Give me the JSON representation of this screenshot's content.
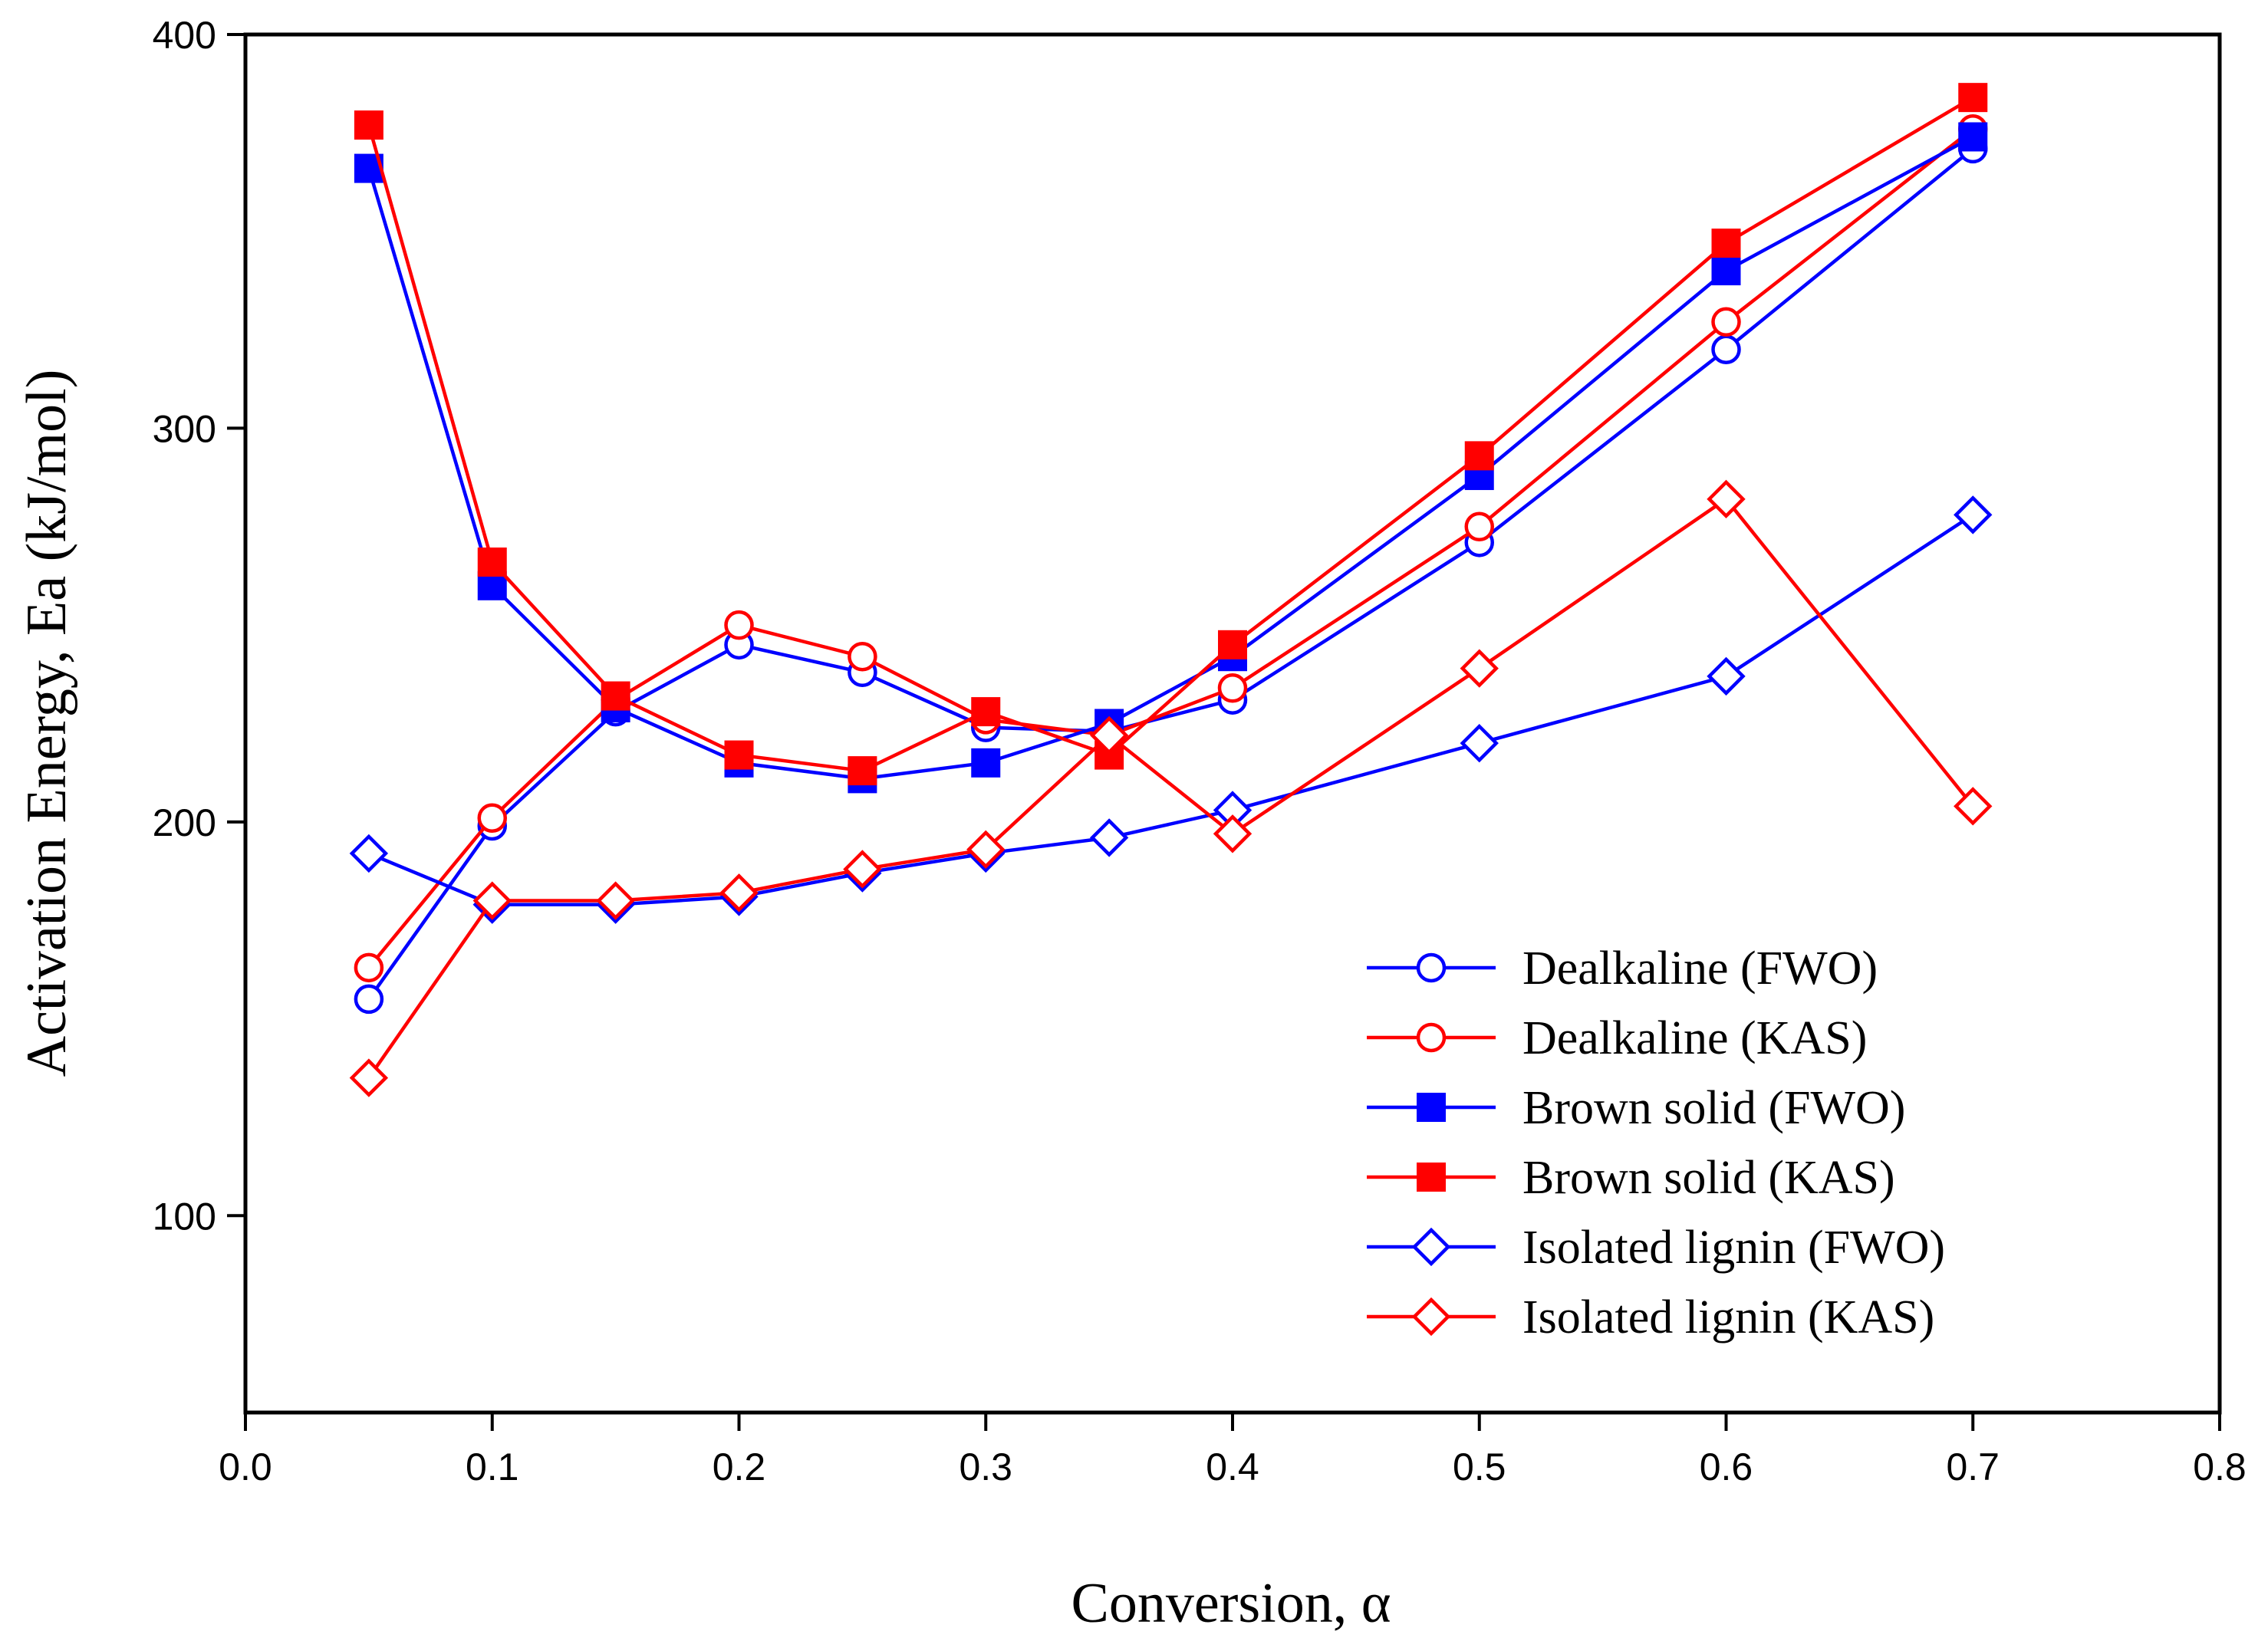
{
  "chart_data": {
    "type": "line",
    "title": "",
    "xlabel": "Conversion, α",
    "ylabel": "Activation Energy, Ea (kJ/mol)",
    "xlim": [
      0.0,
      0.8
    ],
    "ylim": [
      50,
      400
    ],
    "xticks": [
      0.0,
      0.1,
      0.2,
      0.3,
      0.4,
      0.5,
      0.6,
      0.7,
      0.8
    ],
    "yticks": [
      100,
      200,
      300,
      400
    ],
    "xtick_labels": [
      "0.0",
      "0.1",
      "0.2",
      "0.3",
      "0.4",
      "0.5",
      "0.6",
      "0.7",
      "0.8"
    ],
    "ytick_labels": [
      "100",
      "200",
      "300",
      "400"
    ],
    "grid": false,
    "legend_position": "bottom-right",
    "x": [
      0.05,
      0.1,
      0.15,
      0.2,
      0.25,
      0.3,
      0.35,
      0.4,
      0.5,
      0.6,
      0.7
    ],
    "series": [
      {
        "name": "Dealkaline (FWO)",
        "color": "#0000ff",
        "marker": "circle-open",
        "values": [
          155,
          199,
          228,
          245,
          238,
          224,
          223,
          231,
          271,
          320,
          371
        ]
      },
      {
        "name": "Dealkaline (KAS)",
        "color": "#ff0000",
        "marker": "circle-open",
        "values": [
          163,
          201,
          231,
          250,
          242,
          226,
          222,
          234,
          275,
          327,
          376
        ]
      },
      {
        "name": "Brown solid (FWO)",
        "color": "#0000ff",
        "marker": "square-filled",
        "values": [
          366,
          260,
          229,
          215,
          211,
          215,
          225,
          242,
          288,
          340,
          374
        ]
      },
      {
        "name": "Brown solid (KAS)",
        "color": "#ff0000",
        "marker": "square-filled",
        "values": [
          377,
          266,
          232,
          217,
          213,
          228,
          217,
          245,
          293,
          347,
          384
        ]
      },
      {
        "name": "Isolated lignin (FWO)",
        "color": "#0000ff",
        "marker": "diamond-open",
        "values": [
          192,
          179,
          179,
          181,
          187,
          192,
          196,
          203,
          220,
          237,
          278
        ]
      },
      {
        "name": "Isolated lignin (KAS)",
        "color": "#ff0000",
        "marker": "diamond-open",
        "values": [
          135,
          180,
          180,
          182,
          188,
          193,
          222,
          197,
          239,
          282,
          204
        ]
      }
    ]
  }
}
